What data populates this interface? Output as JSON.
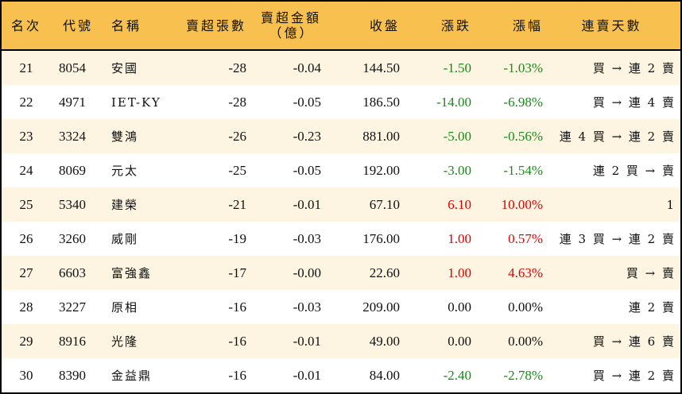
{
  "headers": {
    "rank": "名次",
    "code": "代號",
    "name": "名稱",
    "net_lots": "賣超張數",
    "net_amount": "賣超金額",
    "net_amount_unit": "（億）",
    "close": "收盤",
    "change": "漲跌",
    "pct": "漲幅",
    "streak": "連賣天數"
  },
  "colors": {
    "header": "#f7c04f",
    "odd_row": "#fdf5e2",
    "up": "#e00000",
    "down": "#1a8a1a"
  },
  "rows": [
    {
      "rank": "21",
      "code": "8054",
      "name": "安國",
      "net_lots": "-28",
      "net_amount": "-0.04",
      "close": "144.50",
      "change": "-1.50",
      "pct": "-1.03%",
      "dir": "down",
      "streak": "買 → 連 2 賣"
    },
    {
      "rank": "22",
      "code": "4971",
      "name": "IET-KY",
      "net_lots": "-28",
      "net_amount": "-0.05",
      "close": "186.50",
      "change": "-14.00",
      "pct": "-6.98%",
      "dir": "down",
      "streak": "買 → 連 4 賣"
    },
    {
      "rank": "23",
      "code": "3324",
      "name": "雙鴻",
      "net_lots": "-26",
      "net_amount": "-0.23",
      "close": "881.00",
      "change": "-5.00",
      "pct": "-0.56%",
      "dir": "down",
      "streak": "連 4 買 → 連 2 賣"
    },
    {
      "rank": "24",
      "code": "8069",
      "name": "元太",
      "net_lots": "-25",
      "net_amount": "-0.05",
      "close": "192.00",
      "change": "-3.00",
      "pct": "-1.54%",
      "dir": "down",
      "streak": "連 2 買 → 賣"
    },
    {
      "rank": "25",
      "code": "5340",
      "name": "建榮",
      "net_lots": "-21",
      "net_amount": "-0.01",
      "close": "67.10",
      "change": "6.10",
      "pct": "10.00%",
      "dir": "up",
      "streak": "1"
    },
    {
      "rank": "26",
      "code": "3260",
      "name": "威剛",
      "net_lots": "-19",
      "net_amount": "-0.03",
      "close": "176.00",
      "change": "1.00",
      "pct": "0.57%",
      "dir": "up",
      "streak": "連 3 買 → 連 2 賣"
    },
    {
      "rank": "27",
      "code": "6603",
      "name": "富強鑫",
      "net_lots": "-17",
      "net_amount": "-0.00",
      "close": "22.60",
      "change": "1.00",
      "pct": "4.63%",
      "dir": "up",
      "streak": "買 → 賣"
    },
    {
      "rank": "28",
      "code": "3227",
      "name": "原相",
      "net_lots": "-16",
      "net_amount": "-0.03",
      "close": "209.00",
      "change": "0.00",
      "pct": "0.00%",
      "dir": "flat",
      "streak": "連 2 賣"
    },
    {
      "rank": "29",
      "code": "8916",
      "name": "光隆",
      "net_lots": "-16",
      "net_amount": "-0.01",
      "close": "49.00",
      "change": "0.00",
      "pct": "0.00%",
      "dir": "flat",
      "streak": "買 → 連 6 賣"
    },
    {
      "rank": "30",
      "code": "8390",
      "name": "金益鼎",
      "net_lots": "-16",
      "net_amount": "-0.01",
      "close": "84.00",
      "change": "-2.40",
      "pct": "-2.78%",
      "dir": "down",
      "streak": "買 → 連 2 賣"
    }
  ]
}
